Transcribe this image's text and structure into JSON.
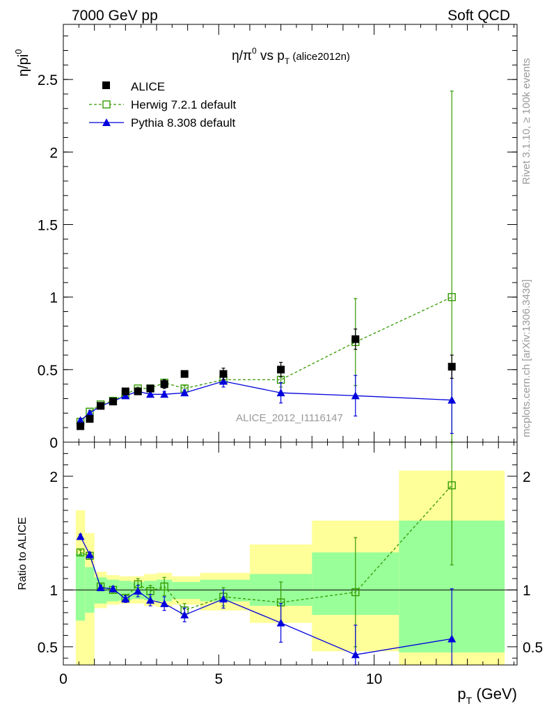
{
  "header": {
    "left": "7000 GeV pp",
    "right": "Soft QCD"
  },
  "side_labels": {
    "top": "Rivet 3.1.10, ≥ 100k events",
    "bottom": "mcplots.cern.ch [arXiv:1306.3436]"
  },
  "colors": {
    "data": "#000000",
    "herwig": "#339900",
    "pythia": "#0000dd",
    "band_inner": "#99ff99",
    "band_outer": "#ffff99"
  },
  "chart_data": [
    {
      "type": "scatter",
      "panel": "main",
      "title_parts": {
        "pre": "η/π",
        "sup": "0",
        "mid": " vs p",
        "sub": "T",
        "post": " (alice2012n)"
      },
      "ylabel_parts": {
        "pre": "η/pi",
        "sup": "0"
      },
      "watermark": "ALICE_2012_I1116147",
      "xlim": [
        0,
        14.6
      ],
      "ylim": [
        0,
        2.88
      ],
      "yticks": [
        0,
        0.5,
        1,
        1.5,
        2,
        2.5
      ],
      "ytick_labels": [
        "0",
        "0.5",
        "1",
        "1.5",
        "2",
        "2.5"
      ],
      "legend_position": "top-left",
      "series": [
        {
          "name": "ALICE",
          "marker": "square-filled",
          "x": [
            0.55,
            0.85,
            1.2,
            1.6,
            2.0,
            2.4,
            2.8,
            3.25,
            3.9,
            5.15,
            7.0,
            9.4,
            12.5
          ],
          "y": [
            0.11,
            0.16,
            0.25,
            0.28,
            0.35,
            0.35,
            0.37,
            0.4,
            0.47,
            0.47,
            0.5,
            0.71,
            0.52
          ],
          "yerr": [
            0.02,
            0.02,
            0.02,
            0.02,
            0.02,
            0.02,
            0.02,
            0.03,
            0.02,
            0.04,
            0.05,
            0.07,
            0.08
          ]
        },
        {
          "name": "Herwig 7.2.1 default",
          "marker": "square-open",
          "line": "dashed",
          "x": [
            0.55,
            0.85,
            1.2,
            1.6,
            2.0,
            2.4,
            2.8,
            3.25,
            3.9,
            5.15,
            7.0,
            9.4,
            12.5
          ],
          "y": [
            0.14,
            0.21,
            0.26,
            0.285,
            0.33,
            0.37,
            0.37,
            0.41,
            0.37,
            0.43,
            0.43,
            0.69,
            1.0
          ],
          "yerr": [
            0.01,
            0.01,
            0.01,
            0.01,
            0.01,
            0.01,
            0.01,
            0.02,
            0.02,
            0.03,
            0.05,
            0.3,
            1.42
          ]
        },
        {
          "name": "Pythia 8.308 default",
          "marker": "triangle-filled",
          "line": "solid",
          "x": [
            0.55,
            0.85,
            1.2,
            1.6,
            2.0,
            2.4,
            2.8,
            3.25,
            3.9,
            5.15,
            7.0,
            9.4,
            12.5
          ],
          "y": [
            0.15,
            0.2,
            0.25,
            0.28,
            0.32,
            0.35,
            0.33,
            0.33,
            0.34,
            0.42,
            0.34,
            0.32,
            0.29
          ],
          "yerr": [
            0.01,
            0.01,
            0.01,
            0.01,
            0.01,
            0.02,
            0.02,
            0.02,
            0.02,
            0.04,
            0.07,
            0.14,
            0.23
          ]
        }
      ]
    },
    {
      "type": "scatter",
      "panel": "ratio",
      "ylabel": "Ratio to ALICE",
      "xlabel_parts": {
        "pre": "p",
        "sub": "T",
        "post": " (GeV)"
      },
      "xlim": [
        0,
        14.6
      ],
      "ylim": [
        0.34,
        2.3
      ],
      "xticks": [
        0,
        5,
        10
      ],
      "xtick_labels": [
        "0",
        "5",
        "10"
      ],
      "yticks": [
        0.5,
        1,
        2
      ],
      "ytick_labels": [
        "0.5",
        "1",
        "2"
      ],
      "reference_line": 1,
      "bands": [
        {
          "x0": 0.4,
          "x1": 0.7,
          "inner": [
            0.73,
            1.32
          ],
          "outer": [
            0.34,
            1.7
          ]
        },
        {
          "x0": 0.7,
          "x1": 1.0,
          "inner": [
            0.8,
            1.2
          ],
          "outer": [
            0.34,
            1.5
          ]
        },
        {
          "x0": 1.0,
          "x1": 1.4,
          "inner": [
            0.88,
            1.11
          ],
          "outer": [
            0.84,
            1.16
          ]
        },
        {
          "x0": 1.4,
          "x1": 1.8,
          "inner": [
            0.9,
            1.09
          ],
          "outer": [
            0.87,
            1.13
          ]
        },
        {
          "x0": 1.8,
          "x1": 2.2,
          "inner": [
            0.91,
            1.08
          ],
          "outer": [
            0.88,
            1.12
          ]
        },
        {
          "x0": 2.2,
          "x1": 2.6,
          "inner": [
            0.92,
            1.07
          ],
          "outer": [
            0.88,
            1.12
          ]
        },
        {
          "x0": 2.6,
          "x1": 3.0,
          "inner": [
            0.91,
            1.08
          ],
          "outer": [
            0.86,
            1.14
          ]
        },
        {
          "x0": 3.0,
          "x1": 3.5,
          "inner": [
            0.9,
            1.09
          ],
          "outer": [
            0.85,
            1.15
          ]
        },
        {
          "x0": 3.5,
          "x1": 4.4,
          "inner": [
            0.92,
            1.07
          ],
          "outer": [
            0.87,
            1.12
          ]
        },
        {
          "x0": 4.4,
          "x1": 6.0,
          "inner": [
            0.9,
            1.09
          ],
          "outer": [
            0.82,
            1.15
          ]
        },
        {
          "x0": 6.0,
          "x1": 8.0,
          "inner": [
            0.86,
            1.14
          ],
          "outer": [
            0.71,
            1.4
          ]
        },
        {
          "x0": 8.0,
          "x1": 10.8,
          "inner": [
            0.78,
            1.33
          ],
          "outer": [
            0.46,
            1.61
          ]
        },
        {
          "x0": 10.8,
          "x1": 14.2,
          "inner": [
            0.45,
            1.61
          ],
          "outer": [
            0.34,
            2.05
          ]
        }
      ],
      "series": [
        {
          "name": "Herwig 7.2.1 default",
          "marker": "square-open",
          "line": "dashed",
          "x": [
            0.55,
            0.85,
            1.2,
            1.6,
            2.0,
            2.4,
            2.8,
            3.25,
            3.9,
            5.15,
            7.0,
            9.4,
            12.5
          ],
          "y": [
            1.33,
            1.3,
            1.03,
            1.0,
            0.93,
            1.05,
            0.99,
            1.03,
            0.82,
            0.94,
            0.89,
            0.98,
            1.92
          ],
          "yerr": [
            0.02,
            0.02,
            0.02,
            0.02,
            0.03,
            0.05,
            0.05,
            0.08,
            0.06,
            0.08,
            0.18,
            0.48,
            0.7
          ]
        },
        {
          "name": "Pythia 8.308 default",
          "marker": "triangle-filled",
          "line": "solid",
          "x": [
            0.55,
            0.85,
            1.2,
            1.6,
            2.0,
            2.4,
            2.8,
            3.25,
            3.9,
            5.15,
            7.0,
            9.4,
            12.5
          ],
          "y": [
            1.47,
            1.31,
            1.02,
            1.01,
            0.92,
            0.99,
            0.91,
            0.88,
            0.78,
            0.92,
            0.71,
            0.43,
            0.57
          ],
          "yerr": [
            0.02,
            0.02,
            0.02,
            0.02,
            0.03,
            0.05,
            0.05,
            0.06,
            0.06,
            0.08,
            0.17,
            0.26,
            0.44
          ]
        }
      ]
    }
  ]
}
